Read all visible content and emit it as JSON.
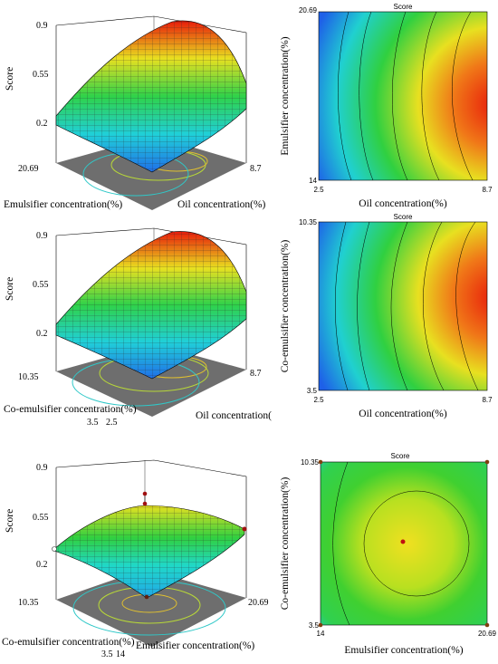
{
  "chart_data": [
    {
      "type": "surface",
      "zlabel": "Score",
      "zticks": [
        "0.9",
        "0.55",
        "0.2"
      ],
      "zlim": [
        0.2,
        0.9
      ],
      "xlabel": "Emulsifier concentration(%)",
      "x_ticks": [
        "20.69"
      ],
      "ylabel": "Oil concentration(%)",
      "y_ticks": [
        "8.7"
      ]
    },
    {
      "type": "heatmap",
      "title": "Score",
      "xlabel": "Oil concentration(%)",
      "x_ticks": [
        "2.5",
        "8.7"
      ],
      "ylabel": "Emulsifier concentration(%)",
      "y_ticks": [
        "14",
        "20.69"
      ]
    },
    {
      "type": "surface",
      "zlabel": "Score",
      "zticks": [
        "0.9",
        "0.55",
        "0.2"
      ],
      "zlim": [
        0.2,
        0.9
      ],
      "xlabel": "Co-emulsifier concentration(%)",
      "x_ticks": [
        "10.35",
        "3.5"
      ],
      "ylabel": "Oil concentration(%)",
      "y_ticks": [
        "2.5",
        "8.7"
      ]
    },
    {
      "type": "heatmap",
      "title": "Score",
      "xlabel": "Oil concentration(%)",
      "x_ticks": [
        "2.5",
        "8.7"
      ],
      "ylabel": "Co-emulsifier concentration(%)",
      "y_ticks": [
        "3.5",
        "10.35"
      ]
    },
    {
      "type": "surface",
      "zlabel": "Score",
      "zticks": [
        "0.9",
        "0.55",
        "0.2"
      ],
      "zlim": [
        0.2,
        0.9
      ],
      "xlabel": "Co-emulsifier concentration(%)",
      "x_ticks": [
        "10.35",
        "3.5"
      ],
      "ylabel": "Emulsifier concentration(%)",
      "y_ticks": [
        "14",
        "20.69"
      ]
    },
    {
      "type": "heatmap",
      "title": "Score",
      "xlabel": "Emulsifier concentration(%)",
      "x_ticks": [
        "14",
        "20.69"
      ],
      "ylabel": "Co-emulsifier concentration(%)",
      "y_ticks": [
        "3.5",
        "10.35"
      ]
    }
  ]
}
